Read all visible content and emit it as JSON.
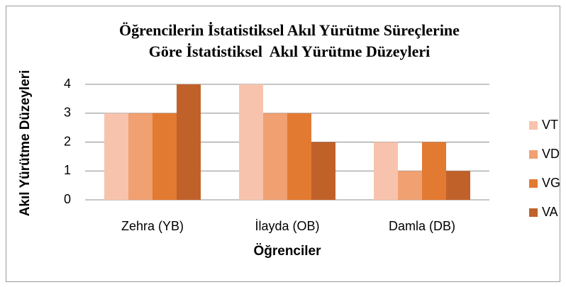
{
  "chart_data": {
    "type": "bar",
    "title": [
      "Öğrencilerin İstatistiksel Akıl Yürütme Süreçlerine",
      "Göre İstatistiksel  Akıl Yürütme Düzeyleri"
    ],
    "x_label": "Öğrenciler",
    "y_label": "Akıl Yürütme Düzeyleri",
    "categories": [
      "Zehra (YB)",
      "İlayda (OB)",
      "Damla (DB)"
    ],
    "series": [
      {
        "name": "VT",
        "color": "#f8c3ad",
        "values": [
          3,
          4,
          2
        ]
      },
      {
        "name": "VD",
        "color": "#f0a071",
        "values": [
          3,
          3,
          1
        ]
      },
      {
        "name": "VG",
        "color": "#e37a32",
        "values": [
          3,
          3,
          2
        ]
      },
      {
        "name": "VA",
        "color": "#c0612a",
        "values": [
          4,
          2,
          1
        ]
      }
    ],
    "ylim": [
      0,
      4
    ],
    "yticks": [
      0,
      1,
      2,
      3,
      4
    ],
    "grid": true,
    "legend": "right"
  }
}
